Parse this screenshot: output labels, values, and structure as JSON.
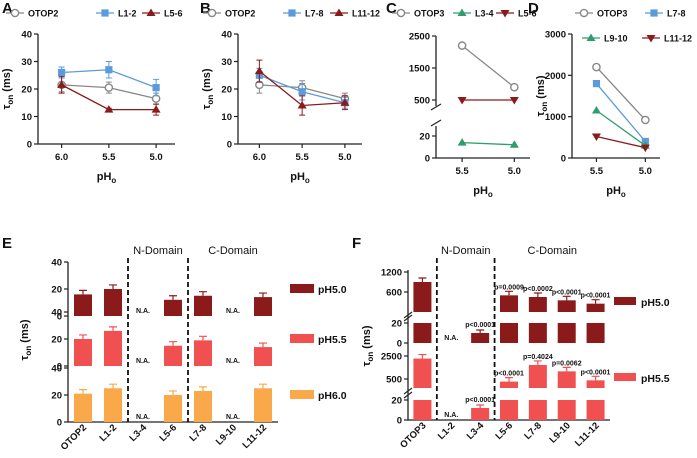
{
  "colors": {
    "otop": "#888888",
    "blue": "#5b9bdc",
    "green": "#2e9e6e",
    "darkred": "#8b1a1a",
    "red": "#f05050",
    "orange": "#f9a84a"
  },
  "chart_data": [
    {
      "panel": "A",
      "type": "line",
      "x": [
        6.0,
        5.5,
        5.0
      ],
      "xlabel": "pHo",
      "ylabel": "τon (ms)",
      "ylim": [
        0,
        40
      ],
      "yticks": [
        0,
        10,
        20,
        30,
        40
      ],
      "series": [
        {
          "name": "OTOP2",
          "values": [
            21.5,
            20.5,
            16.5
          ],
          "err": [
            2.5,
            2,
            2
          ],
          "color": "#888888",
          "marker": "circle"
        },
        {
          "name": "L1-2",
          "values": [
            26,
            27,
            20.5
          ],
          "err": [
            2,
            3,
            3
          ],
          "color": "#5b9bdc",
          "marker": "square"
        },
        {
          "name": "L5-6",
          "values": [
            21.5,
            12.5,
            12.5
          ],
          "err": [
            3,
            0.5,
            2
          ],
          "color": "#8b1a1a",
          "marker": "triangle"
        }
      ]
    },
    {
      "panel": "B",
      "type": "line",
      "x": [
        6.0,
        5.5,
        5.0
      ],
      "xlabel": "pHo",
      "ylabel": "τon (ms)",
      "ylim": [
        0,
        40
      ],
      "yticks": [
        0,
        10,
        20,
        30,
        40
      ],
      "series": [
        {
          "name": "OTOP2",
          "values": [
            21.5,
            20.5,
            16.5
          ],
          "err": [
            3,
            2.5,
            2
          ],
          "color": "#888888",
          "marker": "circle"
        },
        {
          "name": "L7-8",
          "values": [
            25,
            19,
            15
          ],
          "err": [
            2.5,
            3,
            2
          ],
          "color": "#5b9bdc",
          "marker": "square"
        },
        {
          "name": "L11-12",
          "values": [
            26.5,
            14,
            15
          ],
          "err": [
            4,
            3.5,
            2.5
          ],
          "color": "#8b1a1a",
          "marker": "triangle"
        }
      ]
    },
    {
      "panel": "C",
      "type": "line",
      "x": [
        5.5,
        5.0
      ],
      "xlabel": "pHo",
      "ylabel": "",
      "yticks": [
        "0",
        "20",
        "500",
        "1500",
        "2500"
      ],
      "series": [
        {
          "name": "OTOP3",
          "values": [
            2200,
            900
          ],
          "color": "#888888",
          "marker": "circle"
        },
        {
          "name": "L3-4",
          "values": [
            14,
            12
          ],
          "color": "#2e9e6e",
          "marker": "triangle"
        },
        {
          "name": "L5-6",
          "values": [
            500,
            500
          ],
          "color": "#8b1a1a",
          "marker": "triangle-down"
        }
      ]
    },
    {
      "panel": "D",
      "type": "line",
      "x": [
        5.5,
        5.0
      ],
      "xlabel": "pHo",
      "ylabel": "τon (ms)",
      "ylim": [
        0,
        3000
      ],
      "yticks": [
        0,
        1000,
        2000,
        3000
      ],
      "series": [
        {
          "name": "OTOP3",
          "values": [
            2200,
            920
          ],
          "color": "#888888",
          "marker": "circle"
        },
        {
          "name": "L7-8",
          "values": [
            1800,
            400
          ],
          "color": "#5b9bdc",
          "marker": "square"
        },
        {
          "name": "L9-10",
          "values": [
            1150,
            300
          ],
          "color": "#2e9e6e",
          "marker": "triangle"
        },
        {
          "name": "L11-12",
          "values": [
            520,
            250
          ],
          "color": "#8b1a1a",
          "marker": "triangle-down"
        }
      ]
    },
    {
      "panel": "E",
      "type": "bar",
      "categories": [
        "OTOP2",
        "L1-2",
        "L3-4",
        "L5-6",
        "L7-8",
        "L9-10",
        "L11-12"
      ],
      "ylabel": "τon (ms)",
      "ylim": [
        0,
        40
      ],
      "yticks": [
        0,
        20,
        40
      ],
      "domains": [
        "N-Domain",
        "C-Domain"
      ],
      "na_label": "N.A.",
      "series": [
        {
          "name": "pH5.0",
          "color": "#8b1a1a",
          "values": [
            16,
            20,
            null,
            12,
            15,
            null,
            14
          ]
        },
        {
          "name": "pH5.5",
          "color": "#f05050",
          "values": [
            20,
            26,
            null,
            15,
            19,
            null,
            14
          ]
        },
        {
          "name": "pH6.0",
          "color": "#f9a84a",
          "values": [
            21,
            25,
            null,
            20,
            23,
            null,
            25
          ]
        }
      ]
    },
    {
      "panel": "F",
      "type": "bar",
      "categories": [
        "OTOP3",
        "L1-2",
        "L3-4",
        "L5-6",
        "L7-8",
        "L9-10",
        "L11-12"
      ],
      "ylabel": "τon (ms)",
      "domains": [
        "N-Domain",
        "C-Domain"
      ],
      "na_label": "N.A.",
      "series": [
        {
          "name": "pH5.0",
          "color": "#8b1a1a",
          "yticks": [
            "0",
            "20",
            "600",
            "1200"
          ],
          "values": [
            900,
            null,
            10,
            500,
            450,
            350,
            250
          ],
          "pvalues": [
            "",
            "",
            "p<0.0001",
            "p=0.0009",
            "p<0.0002",
            "p<0.0001",
            "p<0.0001"
          ]
        },
        {
          "name": "pH5.5",
          "color": "#f05050",
          "yticks": [
            "0",
            "20",
            "500",
            "2500"
          ],
          "values": [
            2300,
            null,
            12,
            500,
            1800,
            1300,
            600
          ],
          "pvalues": [
            "",
            "",
            "p<0.0001",
            "p<0.0001",
            "p=0.4024",
            "p=0.0062",
            "p<0.0001"
          ]
        }
      ]
    }
  ]
}
